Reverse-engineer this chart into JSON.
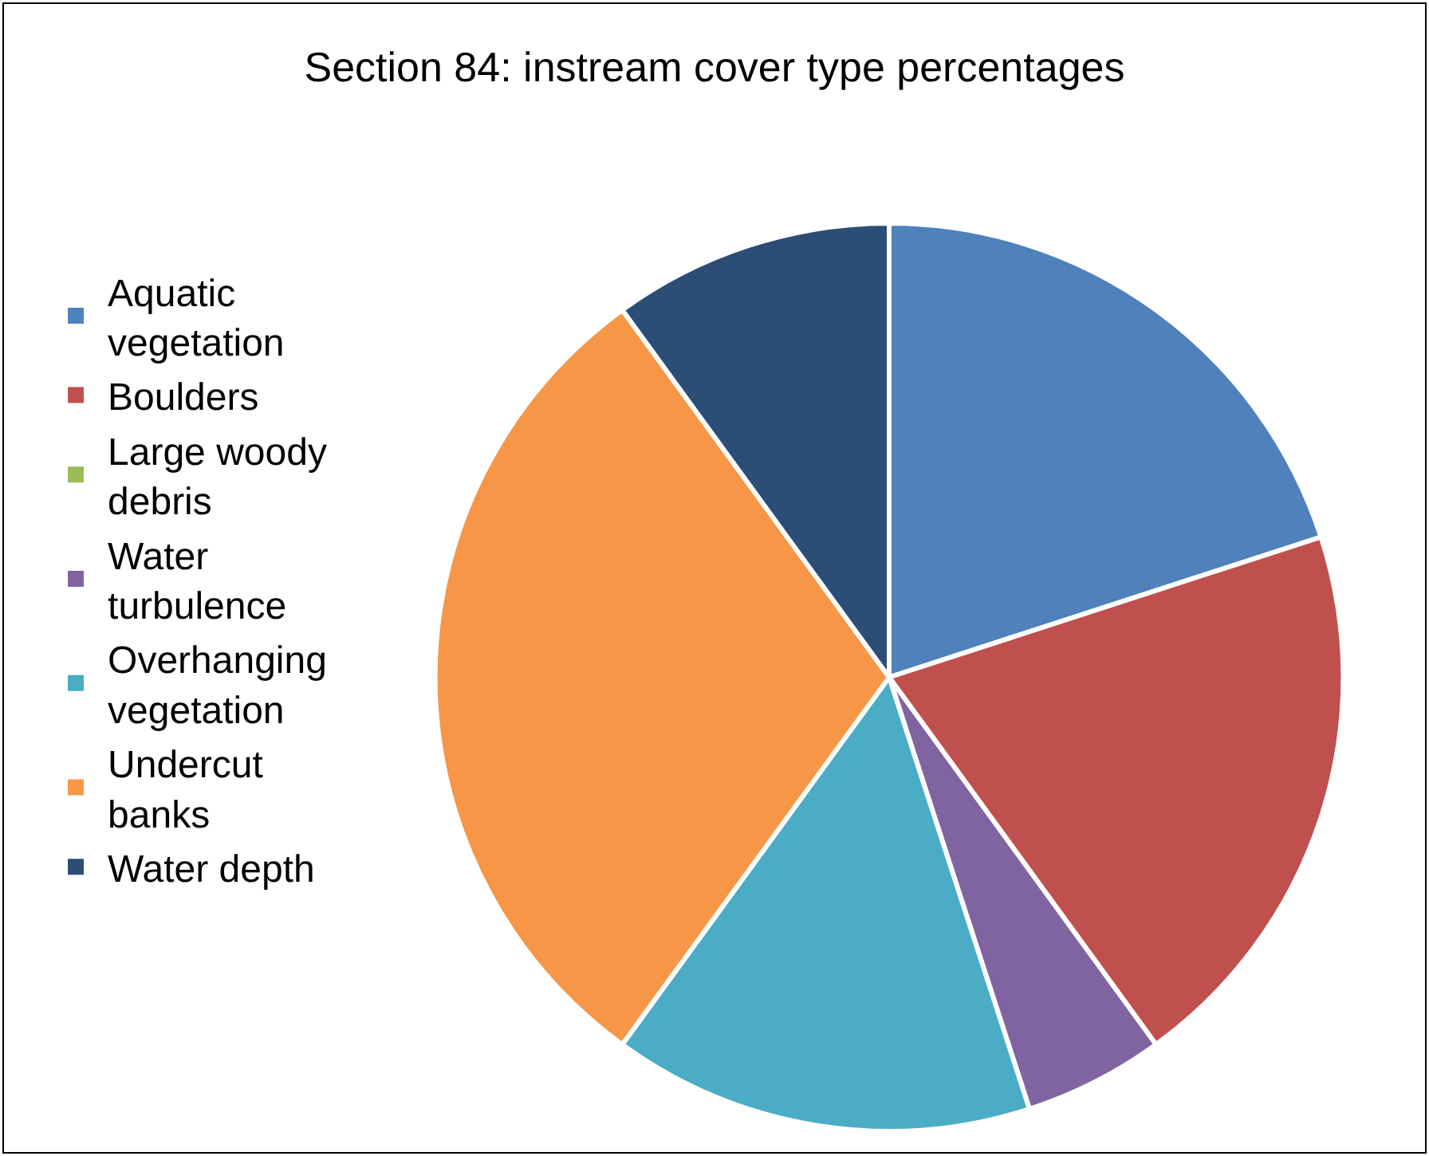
{
  "chart_data": {
    "type": "pie",
    "title": "Section 84: instream cover type percentages",
    "categories": [
      "Aquatic vegetation",
      "Boulders",
      "Large woody debris",
      "Water turbulence",
      "Overhanging vegetation",
      "Undercut banks",
      "Water depth"
    ],
    "values": [
      20,
      20,
      0,
      5,
      15,
      30,
      10
    ],
    "colors": [
      "#4f81bd",
      "#c0504d",
      "#9bbb59",
      "#8064a2",
      "#4bacc6",
      "#f79646",
      "#2c4d75"
    ],
    "legend": "left"
  }
}
